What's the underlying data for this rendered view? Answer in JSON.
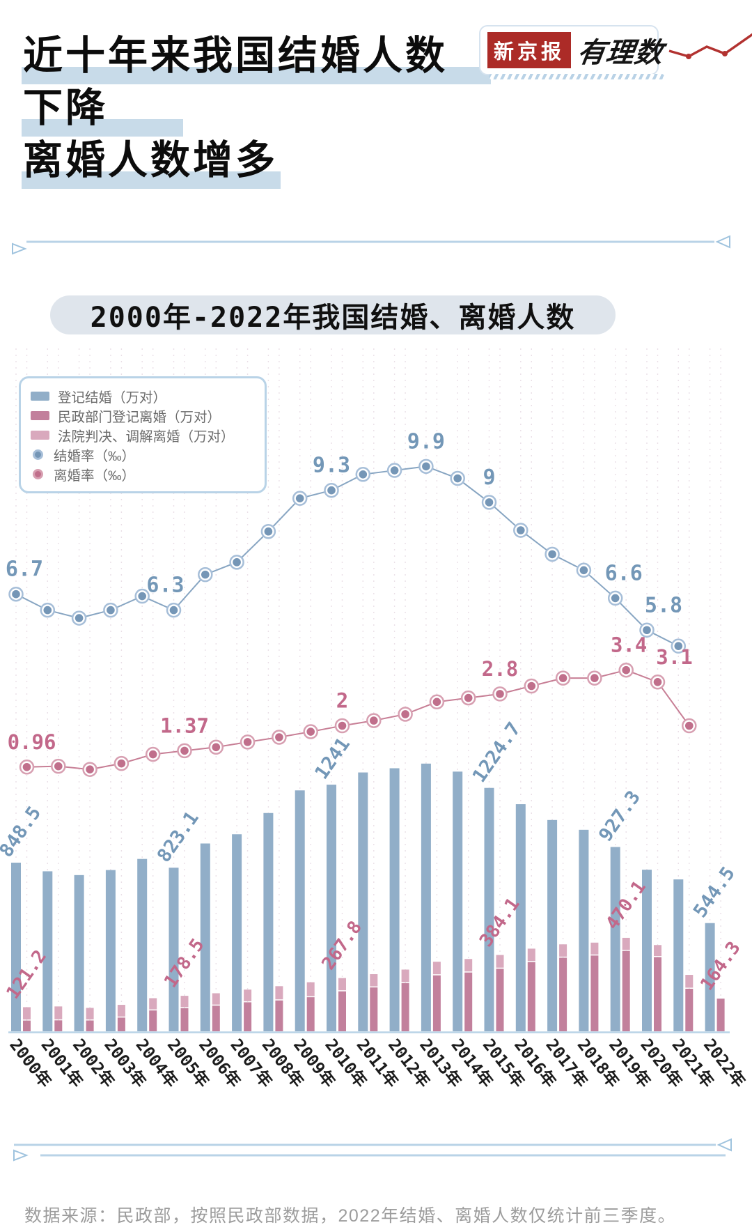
{
  "header": {
    "title_lines": [
      "近十年来我国结婚人数",
      "下降",
      "离婚人数增多"
    ],
    "logo": {
      "brand": "新京报",
      "column": "有理数"
    }
  },
  "chart_title": "2000年-2022年我国结婚、离婚人数",
  "legend": {
    "items": [
      {
        "label": "登记结婚（万对）",
        "type": "rect",
        "color": "#91aec8",
        "ring": "#91aec8"
      },
      {
        "label": "民政部门登记离婚（万对）",
        "type": "rect",
        "color": "#c2809c",
        "ring": "#c2809c"
      },
      {
        "label": "法院判决、调解离婚（万对）",
        "type": "rect",
        "color": "#d9a9bd",
        "ring": "#d9a9bd"
      },
      {
        "label": "结婚率（‰）",
        "type": "dot",
        "color": "#7596b6",
        "ring": "#a6bed8"
      },
      {
        "label": "离婚率（‰）",
        "type": "dot",
        "color": "#c06f8b",
        "ring": "#d79fb1"
      }
    ]
  },
  "chart_data": {
    "type": "bar+line",
    "bar_unit": "万对",
    "rate_unit": "‰",
    "categories": [
      "2000年",
      "2001年",
      "2002年",
      "2003年",
      "2004年",
      "2005年",
      "2006年",
      "2007年",
      "2008年",
      "2009年",
      "2010年",
      "2011年",
      "2012年",
      "2013年",
      "2014年",
      "2015年",
      "2016年",
      "2017年",
      "2018年",
      "2019年",
      "2020年",
      "2021年",
      "2022年"
    ],
    "series": [
      {
        "name": "登记结婚（万对）",
        "type": "bar",
        "values": [
          848.5,
          805.0,
          786.0,
          811.4,
          867.2,
          823.1,
          945.0,
          991.4,
          1098.3,
          1212.2,
          1241.0,
          1302.4,
          1323.6,
          1346.9,
          1306.7,
          1224.7,
          1142.8,
          1063.1,
          1013.9,
          927.3,
          813.1,
          764.3,
          544.5
        ]
      },
      {
        "name": "民政部门登记离婚（万对）",
        "type": "bar",
        "stack": "divorce",
        "values": [
          54.0,
          55.0,
          54.4,
          69.0,
          104.9,
          116.8,
          129.1,
          145.9,
          155.3,
          171.3,
          201.0,
          220.7,
          242.3,
          281.5,
          295.7,
          314.9,
          348.6,
          370.4,
          381.2,
          404.7,
          373.3,
          214.1,
          164.3
        ]
      },
      {
        "name": "法院判决、调解离婚（万对）",
        "type": "bar",
        "stack": "divorce",
        "values": [
          67.2,
          70.0,
          63.3,
          64.1,
          61.6,
          61.7,
          62.2,
          63.9,
          71.6,
          75.5,
          66.8,
          66.7,
          68.1,
          68.5,
          68.0,
          69.2,
          67.2,
          67.0,
          64.9,
          65.4,
          60.6,
          69.8,
          0
        ]
      },
      {
        "name": "结婚率（‰）",
        "type": "line",
        "values": [
          6.7,
          6.3,
          6.1,
          6.3,
          6.65,
          6.3,
          7.19,
          7.5,
          8.27,
          9.1,
          9.3,
          9.7,
          9.8,
          9.9,
          9.6,
          9.0,
          8.3,
          7.7,
          7.3,
          6.6,
          5.8,
          5.4,
          null
        ]
      },
      {
        "name": "离婚率（‰）",
        "type": "line",
        "values": [
          0.96,
          0.98,
          0.9,
          1.05,
          1.28,
          1.37,
          1.46,
          1.59,
          1.71,
          1.85,
          2.0,
          2.13,
          2.29,
          2.6,
          2.7,
          2.8,
          3.0,
          3.2,
          3.2,
          3.4,
          3.1,
          2.0,
          null
        ]
      }
    ],
    "annotations": {
      "marriage_bars": [
        {
          "i": 0,
          "text": "848.5"
        },
        {
          "i": 5,
          "text": "823.1"
        },
        {
          "i": 10,
          "text": "1241"
        },
        {
          "i": 15,
          "text": "1224.7"
        },
        {
          "i": 19,
          "text": "927.3"
        },
        {
          "i": 22,
          "text": "544.5"
        }
      ],
      "divorce_bars": [
        {
          "i": 0,
          "text": "121.2"
        },
        {
          "i": 5,
          "text": "178.5"
        },
        {
          "i": 10,
          "text": "267.8"
        },
        {
          "i": 15,
          "text": "384.1"
        },
        {
          "i": 19,
          "text": "470.1"
        },
        {
          "i": 22,
          "text": "164.3"
        }
      ],
      "marriage_rate": [
        {
          "i": 0,
          "text": "6.7",
          "dx": 12
        },
        {
          "i": 5,
          "text": "6.3",
          "dx": -12
        },
        {
          "i": 10,
          "text": "9.3"
        },
        {
          "i": 13,
          "text": "9.9"
        },
        {
          "i": 15,
          "text": "9"
        },
        {
          "i": 19,
          "text": "6.6",
          "dx": 12
        },
        {
          "i": 20,
          "text": "5.8",
          "dx": 24
        }
      ],
      "divorce_rate": [
        {
          "i": 0,
          "text": "0.96",
          "dx": 7
        },
        {
          "i": 5,
          "text": "1.37"
        },
        {
          "i": 10,
          "text": "2"
        },
        {
          "i": 15,
          "text": "2.8"
        },
        {
          "i": 19,
          "text": "3.4",
          "dx": 4
        },
        {
          "i": 20,
          "text": "3.1",
          "dx": 24
        }
      ]
    },
    "legend_position": "top-left",
    "grid": "vertical-dashed"
  },
  "colors": {
    "bar_marriage": "#91aec8",
    "bar_divorce_civil": "#c2809c",
    "bar_divorce_court": "#d9a9bd",
    "line_marriage": "#87a5c2",
    "dot_marriage": "#7596b6",
    "ring_marriage": "#a6bed8",
    "line_divorce": "#c77e95",
    "dot_divorce": "#c06f8b",
    "ring_divorce": "#d79fb1",
    "label_marriage": "#7397b7",
    "label_divorce": "#c2688a",
    "highlight": "#c8dbe9",
    "pill_bg": "#dfe5ec",
    "divider": "#b9d3e7",
    "grid": "#eadfe7",
    "axis_text": "#1c1c1c",
    "footer_text": "#9c9c9c",
    "legend_text": "#6b6b6b",
    "brand_red": "#ac2b27"
  },
  "footer": {
    "source_note": "数据来源：民政部，按照民政部数据，2022年结婚、离婚人数仅统计前三季度。"
  }
}
